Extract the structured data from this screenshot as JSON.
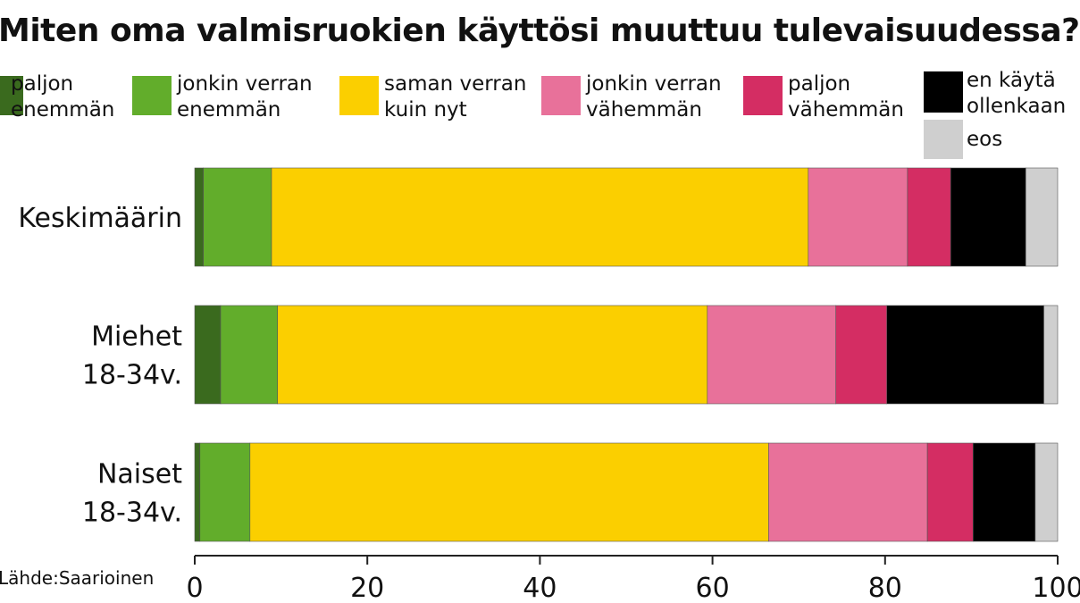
{
  "chart_data": {
    "type": "bar",
    "orientation": "horizontal",
    "stacked": true,
    "title": "Miten oma valmisruokien käyttösi muuttuu tulevaisuudessa?",
    "source": "Lähde:Saarioinen",
    "categories": [
      [
        "Keskimäärin"
      ],
      [
        "Miehet",
        "18-34v."
      ],
      [
        "Naiset",
        "18-34v."
      ]
    ],
    "series": [
      {
        "name": "paljon enemmän",
        "label_lines": [
          "paljon",
          "enemmän"
        ],
        "color": "#3a6a1e",
        "values": [
          1.0,
          3.0,
          0.6
        ]
      },
      {
        "name": "jonkin verran enemmän",
        "label_lines": [
          "jonkin verran",
          "enemmän"
        ],
        "color": "#62ad2b",
        "values": [
          7.9,
          6.6,
          5.8
        ]
      },
      {
        "name": "saman verran kuin nyt",
        "label_lines": [
          "saman verran",
          "kuin nyt"
        ],
        "color": "#fbcf00",
        "values": [
          62.2,
          49.8,
          60.1
        ]
      },
      {
        "name": "jonkin verran vähemmän",
        "label_lines": [
          "jonkin verran",
          "vähemmän"
        ],
        "color": "#e8719a",
        "values": [
          11.5,
          14.9,
          18.4
        ]
      },
      {
        "name": "paljon vähemmän",
        "label_lines": [
          "paljon",
          "vähemmän"
        ],
        "color": "#d42d63",
        "values": [
          5.0,
          5.9,
          5.3
        ]
      },
      {
        "name": "en käytä ollenkaan",
        "label_lines": [
          "en käytä",
          "ollenkaan"
        ],
        "color": "#000000",
        "values": [
          8.7,
          18.2,
          7.2
        ]
      },
      {
        "name": "eos",
        "label_lines": [
          "eos"
        ],
        "color": "#cfcfcf",
        "values": [
          3.7,
          1.6,
          2.6
        ]
      }
    ],
    "xlim": [
      0,
      100
    ],
    "xticks": [
      0,
      20,
      40,
      60,
      80,
      100
    ],
    "grid": false,
    "legend_position": "top"
  }
}
